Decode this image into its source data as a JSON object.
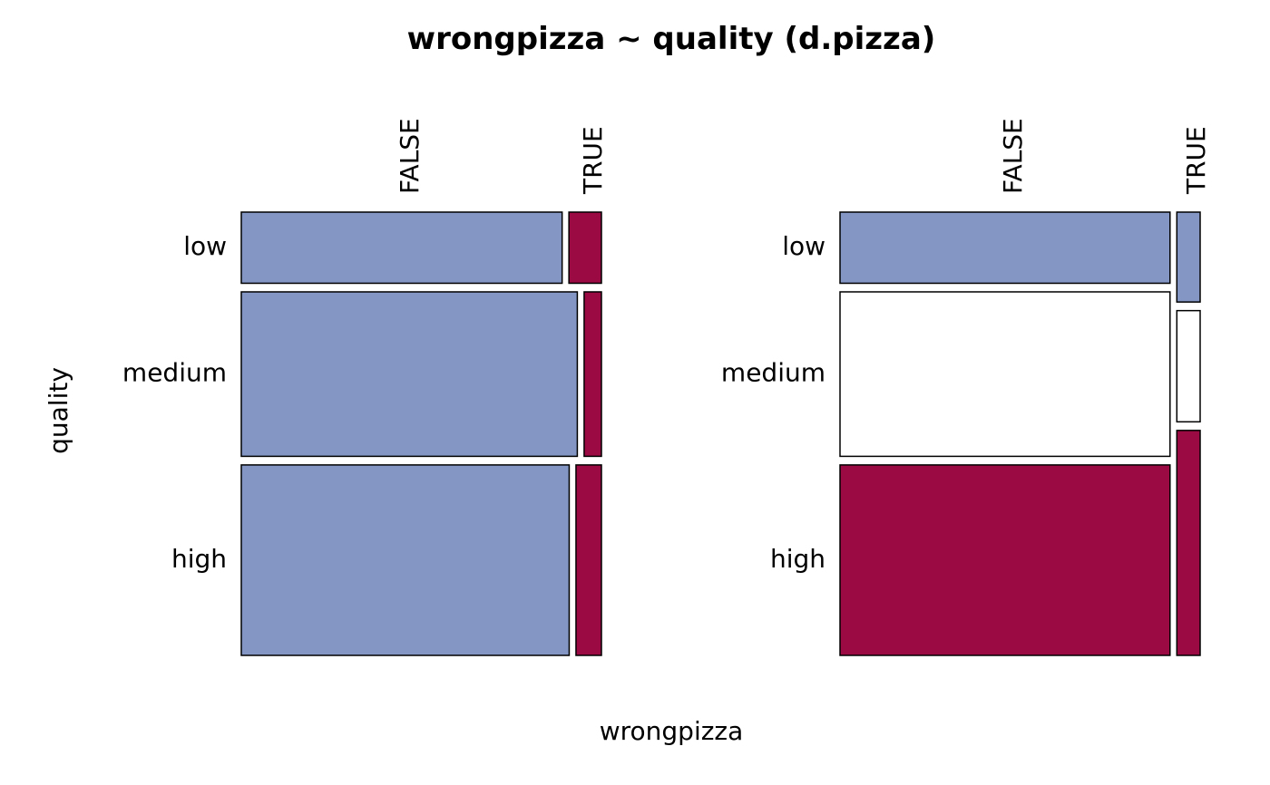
{
  "chart_data": {
    "type": "mosaic",
    "title": "wrongpizza ~ quality (d.pizza)",
    "xlabel": "wrongpizza",
    "ylabel": "quality",
    "colors": {
      "blue": "#8396C4",
      "red": "#9B0A43",
      "white": "#FFFFFF",
      "stroke": "#000000"
    },
    "panels": [
      {
        "columns": [
          "FALSE",
          "TRUE"
        ],
        "rows": [
          {
            "label": "low",
            "height_share": 0.167,
            "cells": [
              {
                "column": "FALSE",
                "share": 0.908,
                "fill": "blue"
              },
              {
                "column": "TRUE",
                "share": 0.092,
                "fill": "red"
              }
            ]
          },
          {
            "label": "medium",
            "height_share": 0.386,
            "cells": [
              {
                "column": "FALSE",
                "share": 0.951,
                "fill": "blue"
              },
              {
                "column": "TRUE",
                "share": 0.049,
                "fill": "red"
              }
            ]
          },
          {
            "label": "high",
            "height_share": 0.447,
            "cells": [
              {
                "column": "FALSE",
                "share": 0.928,
                "fill": "blue"
              },
              {
                "column": "TRUE",
                "share": 0.072,
                "fill": "red"
              }
            ]
          }
        ]
      },
      {
        "columns": [
          "FALSE",
          "TRUE"
        ],
        "column_shares": [
          0.934,
          0.066
        ],
        "columns_data": [
          {
            "column": "FALSE",
            "segments": [
              {
                "row": "low",
                "share": 0.167,
                "fill": "blue"
              },
              {
                "row": "medium",
                "share": 0.386,
                "fill": "white"
              },
              {
                "row": "high",
                "share": 0.447,
                "fill": "red"
              }
            ]
          },
          {
            "column": "TRUE",
            "segments": [
              {
                "row": "low",
                "share": 0.211,
                "fill": "blue"
              },
              {
                "row": "medium",
                "share": 0.261,
                "fill": "white"
              },
              {
                "row": "high",
                "share": 0.528,
                "fill": "red"
              }
            ]
          }
        ],
        "row_labels": [
          "low",
          "medium",
          "high"
        ]
      }
    ]
  }
}
